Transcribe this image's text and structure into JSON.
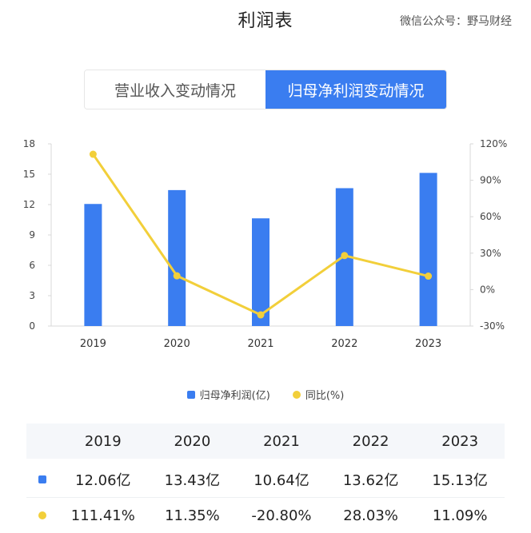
{
  "header": {
    "title": "利润表",
    "watermark": "微信公众号：野马财经"
  },
  "tabs": [
    {
      "label": "营业收入变动情况",
      "active": false
    },
    {
      "label": "归母净利润变动情况",
      "active": true
    }
  ],
  "colors": {
    "bar": "#3a7df0",
    "line": "#f2cf3a",
    "accent": "#3a7df0"
  },
  "chart_data": {
    "type": "bar",
    "categories": [
      "2019",
      "2020",
      "2021",
      "2022",
      "2023"
    ],
    "series": [
      {
        "name": "归母净利润(亿)",
        "type": "bar",
        "axis": "left",
        "values": [
          12.06,
          13.43,
          10.64,
          13.62,
          15.13
        ]
      },
      {
        "name": "同比(%)",
        "type": "line",
        "axis": "right",
        "values": [
          111.41,
          11.35,
          -20.8,
          28.03,
          11.09
        ]
      }
    ],
    "left_axis": {
      "ticks": [
        "18",
        "15",
        "12",
        "9",
        "6",
        "3",
        "0"
      ],
      "ylim": [
        0,
        18
      ]
    },
    "right_axis": {
      "ticks": [
        "120%",
        "90%",
        "60%",
        "30%",
        "0%",
        "-30%"
      ],
      "ylim": [
        -30,
        120
      ]
    },
    "legend_position": "bottom-center",
    "grid": false
  },
  "legend": [
    {
      "label": "归母净利润(亿)",
      "marker": "square"
    },
    {
      "label": "同比(%)",
      "marker": "circle"
    }
  ],
  "table": {
    "years": [
      "2019",
      "2020",
      "2021",
      "2022",
      "2023"
    ],
    "rows": [
      {
        "marker": "square",
        "values": [
          "12.06亿",
          "13.43亿",
          "10.64亿",
          "13.62亿",
          "15.13亿"
        ]
      },
      {
        "marker": "circle",
        "values": [
          "111.41%",
          "11.35%",
          "-20.80%",
          "28.03%",
          "11.09%"
        ]
      }
    ]
  }
}
